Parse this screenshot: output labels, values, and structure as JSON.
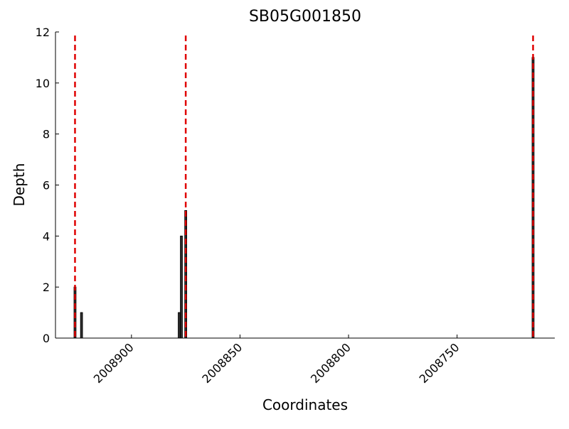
{
  "chart_data": {
    "type": "bar",
    "title": "SB05G001850",
    "xlabel": "Coordinates",
    "ylabel": "Depth",
    "x": [
      2008926,
      2008923,
      2008878,
      2008877,
      2008875,
      2008715
    ],
    "values": [
      2,
      1,
      1,
      4,
      5,
      11
    ],
    "color": "#333333",
    "vlines": [
      2008926,
      2008875,
      2008715
    ],
    "vline_color": "#e00000",
    "xlim": [
      2008935,
      2008705
    ],
    "xticks": [
      2008900,
      2008850,
      2008800,
      2008750
    ],
    "ylim": [
      0,
      12
    ],
    "yticks": [
      0,
      2,
      4,
      6,
      8,
      10,
      12
    ]
  }
}
